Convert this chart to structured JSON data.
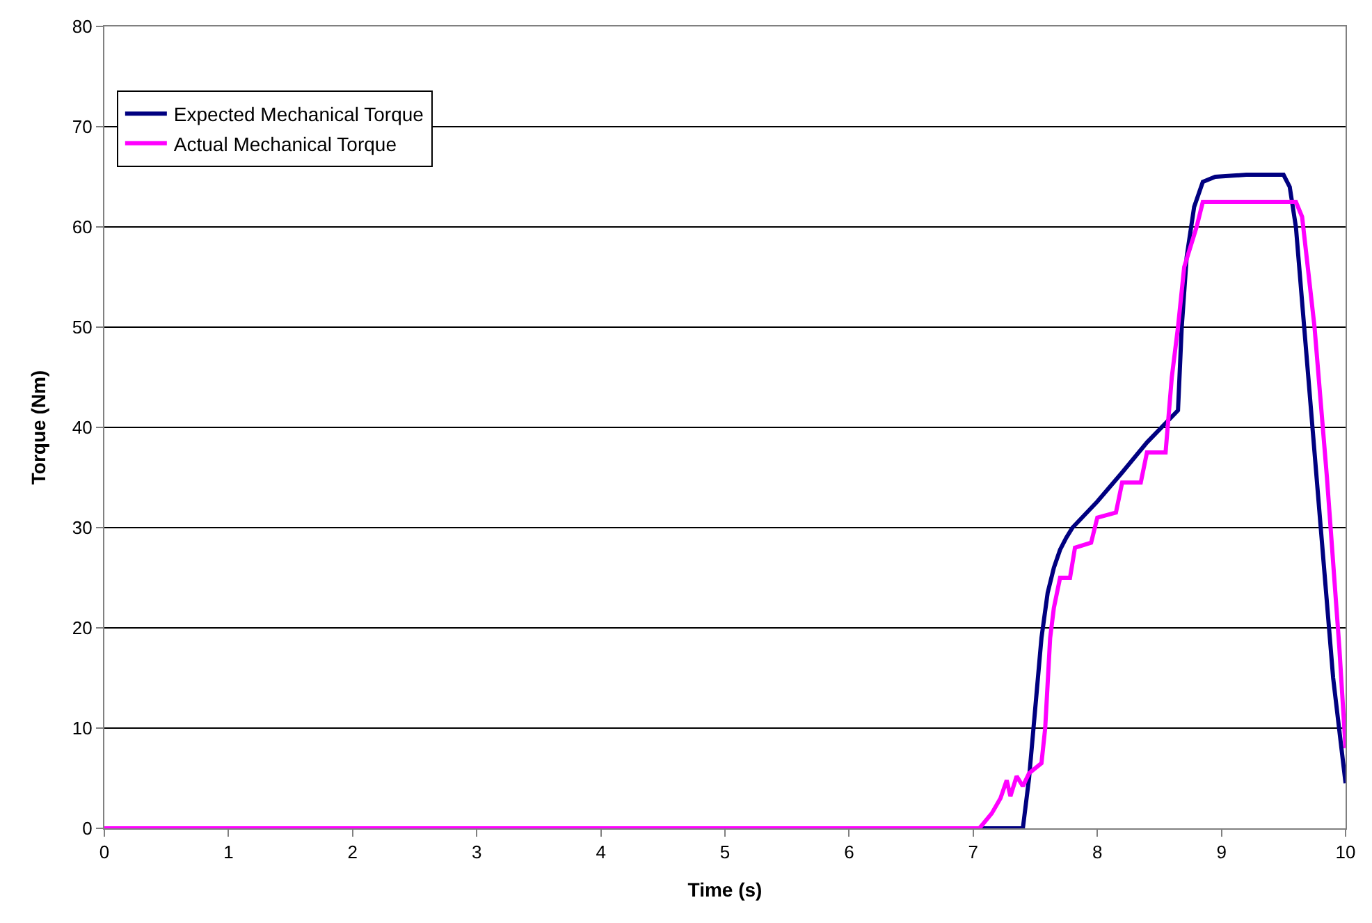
{
  "chart_data": {
    "type": "line",
    "xlabel": "Time (s)",
    "ylabel": "Torque (Nm)",
    "xlim": [
      0,
      10
    ],
    "xticks": [
      0,
      1,
      2,
      3,
      4,
      5,
      6,
      7,
      8,
      9,
      10
    ],
    "ylim": [
      0,
      80
    ],
    "yticks": [
      0,
      10,
      20,
      30,
      40,
      50,
      60,
      70,
      80
    ],
    "grid": "y",
    "legend": "top left",
    "marker": "none",
    "line_style": "solid",
    "series": [
      {
        "name": "Expected Mechanical Torque",
        "color": "#000080",
        "x": [
          0,
          7.4,
          7.45,
          7.5,
          7.55,
          7.6,
          7.65,
          7.7,
          7.75,
          7.8,
          7.9,
          8.0,
          8.2,
          8.4,
          8.65,
          8.68,
          8.72,
          8.78,
          8.85,
          8.95,
          9.2,
          9.5,
          9.55,
          9.6,
          9.7,
          9.8,
          9.9,
          10
        ],
        "values": [
          0,
          0,
          5,
          12,
          19,
          23.5,
          26,
          27.8,
          29,
          30,
          31.3,
          32.6,
          35.5,
          38.5,
          41.7,
          50,
          57,
          62,
          64.5,
          65,
          65.2,
          65.2,
          64,
          60,
          45,
          30,
          15,
          4.5
        ]
      },
      {
        "name": "Actual Mechanical Torque",
        "color": "#ff00ff",
        "x": [
          0,
          7.05,
          7.15,
          7.22,
          7.27,
          7.3,
          7.35,
          7.4,
          7.45,
          7.5,
          7.55,
          7.58,
          7.62,
          7.65,
          7.7,
          7.78,
          7.82,
          7.95,
          8.0,
          8.15,
          8.2,
          8.35,
          8.4,
          8.55,
          8.6,
          8.65,
          8.7,
          8.8,
          8.85,
          9.6,
          9.65,
          9.75,
          9.85,
          9.95,
          10
        ],
        "values": [
          0,
          0,
          1.5,
          3,
          4.8,
          3.2,
          5.2,
          4.2,
          5.5,
          6,
          6.5,
          10,
          19,
          22,
          25,
          25,
          28,
          28.5,
          31,
          31.5,
          34.5,
          34.5,
          37.5,
          37.5,
          45,
          50,
          56,
          60,
          62.5,
          62.5,
          61,
          50,
          35,
          18,
          8
        ]
      }
    ]
  }
}
